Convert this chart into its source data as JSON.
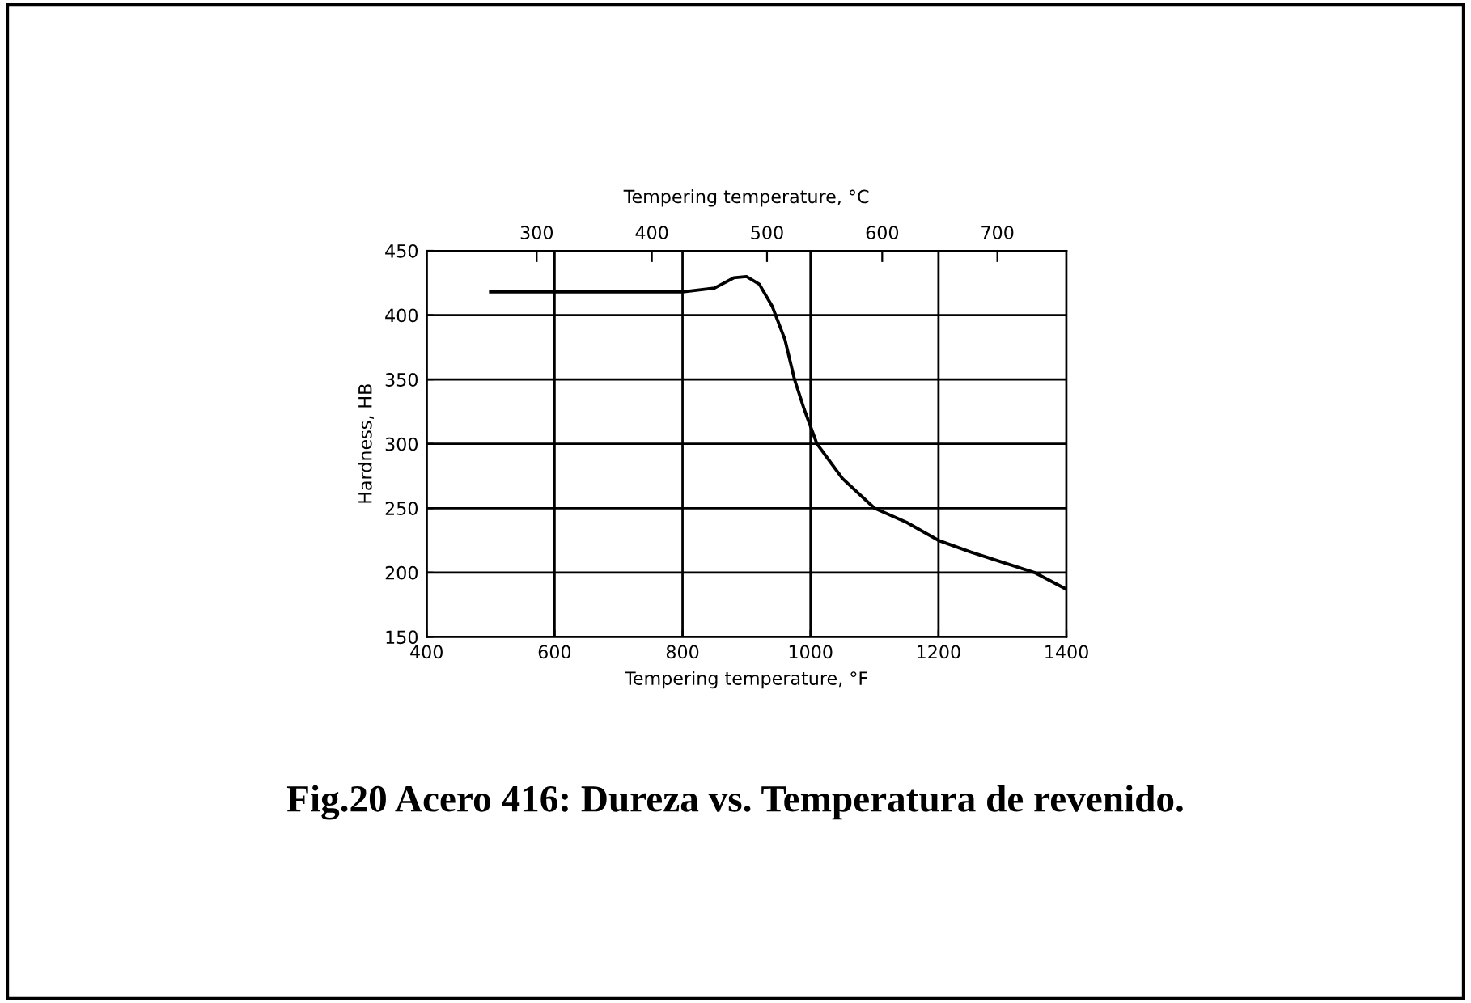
{
  "chart_data": {
    "type": "line",
    "xlabel": "Tempering temperature, °F",
    "ylabel": "Hardness, HB",
    "x2label": "Tempering temperature, °C",
    "annotations": [
      "Fig.20 Acero 416: Dureza vs. Temperatura de revenido."
    ],
    "series": [
      {
        "color": "#000000",
        "x": [
          500,
          600,
          700,
          800,
          850,
          880,
          900,
          920,
          940,
          960,
          975,
          990,
          1010,
          1050,
          1100,
          1150,
          1200,
          1250,
          1300,
          1350,
          1400
        ],
        "values": [
          418,
          418,
          418,
          418,
          421,
          429,
          430,
          424,
          407,
          381,
          350,
          327,
          300,
          273,
          250,
          239,
          225,
          216,
          208,
          200,
          187
        ]
      }
    ],
    "xlim": [
      400,
      1400
    ],
    "xticks": [
      400,
      600,
      800,
      1000,
      1200,
      1400
    ],
    "ylim": [
      150,
      450
    ],
    "yticks": [
      150,
      200,
      250,
      300,
      350,
      400,
      450
    ],
    "x2lim": [
      204.4,
      760
    ],
    "x2ticks": [
      300,
      400,
      500,
      600,
      700
    ],
    "grid": true,
    "legend": false,
    "marker": "none",
    "line_style": "solid"
  }
}
